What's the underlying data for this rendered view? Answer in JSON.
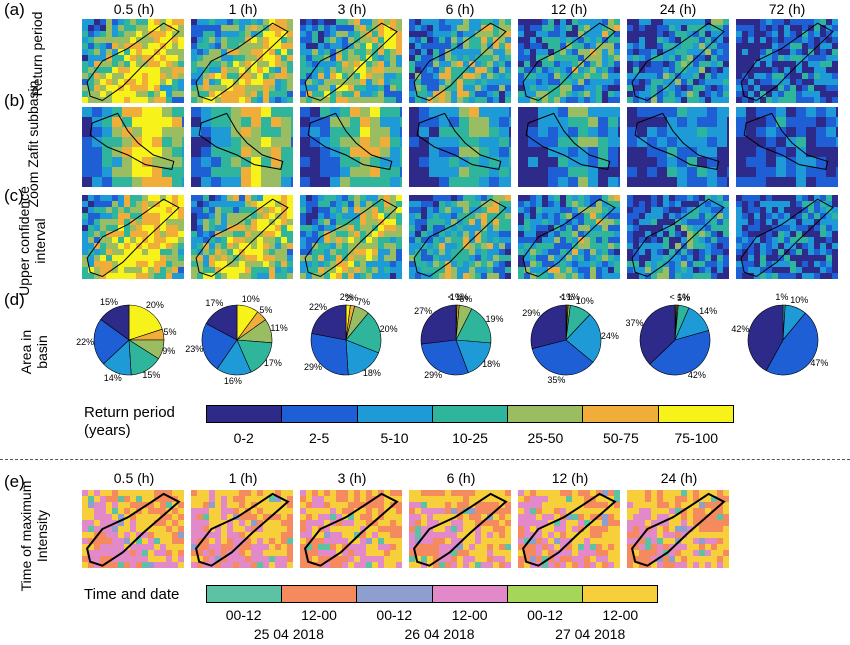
{
  "panel_labels": {
    "a": "(a)",
    "b": "(b)",
    "c": "(c)",
    "d": "(d)",
    "e": "(e)"
  },
  "row_labels": {
    "a": "Return period",
    "b": "Zoom Zafit subbasin",
    "c": "Upper confidence interval",
    "d": "Area in basin",
    "e": "Time of maximum Intensity"
  },
  "durations": [
    "0.5 (h)",
    "1 (h)",
    "3 (h)",
    "6 (h)",
    "12 (h)",
    "24 (h)",
    "72 (h)"
  ],
  "durations_e": [
    "0.5 (h)",
    "1 (h)",
    "3 (h)",
    "6 (h)",
    "12 (h)",
    "24 (h)"
  ],
  "return_legend": {
    "title": "Return period (years)",
    "classes": [
      "0-2",
      "2-5",
      "5-10",
      "10-25",
      "25-50",
      "50-75",
      "75-100"
    ],
    "colors": [
      "#2e2a8a",
      "#1f5fd6",
      "#1e9ad6",
      "#2fb59b",
      "#9bbd62",
      "#f0ad3a",
      "#f7f21a"
    ]
  },
  "time_legend": {
    "title": "Time and date",
    "classes": [
      "00-12",
      "12-00",
      "00-12",
      "12-00",
      "00-12",
      "12-00"
    ],
    "dates": [
      "25 04 2018",
      "26 04 2018",
      "27 04 2018"
    ],
    "colors": [
      "#5dc2a4",
      "#f58a5e",
      "#8e9fcf",
      "#e28ac9",
      "#a5d65a",
      "#f7cf3a"
    ]
  },
  "chart_data": [
    {
      "type": "pie",
      "title": "Area in basin",
      "categories": [
        "0-2",
        "2-5",
        "5-10",
        "10-25",
        "25-50",
        "50-75",
        "75-100"
      ],
      "pies": [
        {
          "duration": "0.5 (h)",
          "values": [
            15,
            22,
            14,
            15,
            9,
            5,
            20
          ],
          "labels": [
            "15%",
            "22%",
            "14%",
            "15%",
            "9%",
            "5%",
            "20%"
          ]
        },
        {
          "duration": "1 (h)",
          "values": [
            17,
            23,
            16,
            17,
            11,
            5,
            10
          ],
          "labels": [
            "17%",
            "23%",
            "16%",
            "17%",
            "11%",
            "5%",
            "10%"
          ]
        },
        {
          "duration": "3 (h)",
          "values": [
            22,
            29,
            18,
            20,
            7,
            2,
            2
          ],
          "labels": [
            "22%",
            "29%",
            "18%",
            "20%",
            "7%",
            "2%",
            "2%"
          ]
        },
        {
          "duration": "6 (h)",
          "values": [
            27,
            29,
            18,
            19,
            6,
            1,
            0.5
          ],
          "labels": [
            "27%",
            "29%",
            "18%",
            "19%",
            "6%",
            "1%",
            "< 1%"
          ]
        },
        {
          "duration": "12 (h)",
          "values": [
            29,
            35,
            24,
            10,
            1,
            0.5,
            0.5
          ],
          "labels": [
            "29%",
            "35%",
            "24%",
            "10%",
            "1%",
            "< 1%",
            ""
          ]
        },
        {
          "duration": "24 (h)",
          "values": [
            37,
            42,
            14,
            5,
            0.5,
            0.5,
            0.5
          ],
          "labels": [
            "37%",
            "42%",
            "14%",
            "5%",
            "< 1%",
            "",
            ""
          ]
        },
        {
          "duration": "72 (h)",
          "values": [
            42,
            47,
            10,
            1,
            0,
            0,
            0
          ],
          "labels": [
            "42%",
            "47%",
            "10%",
            "1%",
            "",
            "",
            ""
          ]
        }
      ]
    }
  ]
}
